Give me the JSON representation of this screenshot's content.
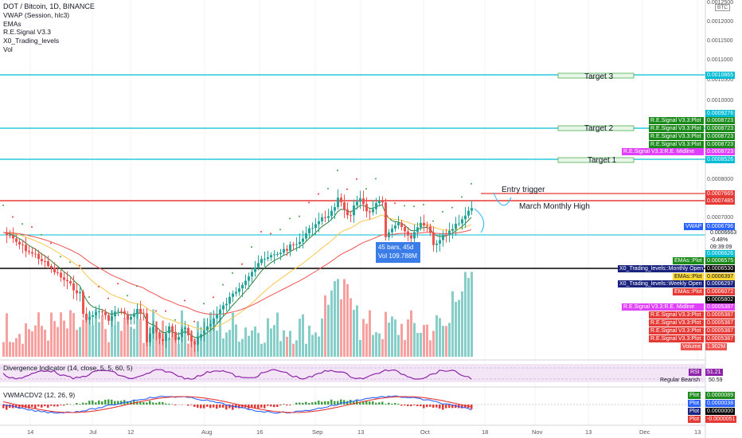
{
  "legend": {
    "title": "DOT / Bitcoin, 1D, BINANCE",
    "items": [
      "VWAP (Session, hlc3)",
      "EMAs",
      "R.E.Signal V3.3",
      "X0_Trading_levels",
      "Vol"
    ]
  },
  "currency": "BTC",
  "price_axis": [
    "0.0012500",
    "0.0012000",
    "0.0011500",
    "0.0011000",
    "0.0010500",
    "0.0010000",
    "0.0008000",
    "0.0007000"
  ],
  "time_axis": [
    "14",
    "Jul",
    "12",
    "Aug",
    "16",
    "Sep",
    "13",
    "Oct",
    "18",
    "Nov",
    "13",
    "Dec",
    "13"
  ],
  "targets": {
    "target3": "Target 3",
    "target2": "Target 2",
    "target1": "Target 1"
  },
  "annotations": {
    "entry": "Entry trigger",
    "march_high": "March Monthly High"
  },
  "bar_info": {
    "line1": "45 bars, 45d",
    "line2": "Vol 109.788M"
  },
  "right_tags": {
    "level_3": "0.0010865",
    "level_9276": "0.0009276",
    "re_plot_1": "R.E.Signal V3.3:Plot",
    "re_val_1": "0.0008723",
    "re_plot_2": "R.E.Signal V3.3:Plot",
    "re_val_2": "0.0008723",
    "re_plot_3": "R.E.Signal V3.3:Plot",
    "re_val_3": "0.0008723",
    "re_plot_4": "R.E.Signal V3.3:Plot",
    "re_val_4": "0.0008723",
    "re_midline_top": "R.E.Signal V3.3:R.E. Midline",
    "re_mid_val_top": "0.0008723",
    "level_8526": "0.0008526",
    "level_7665": "0.0007665",
    "level_7485": "0.0007485",
    "vwap_label": "VWAP",
    "vwap_val": "0.0006796",
    "price": "0.0006663",
    "change": "-0.48%",
    "countdown": "09:39:09",
    "level_6626": "0.0006626",
    "emas_plot_1": "EMAs::Plot",
    "emas_val_1": "0.0006575",
    "x0_monthly": "X0_Trading_levels::Monthly Open",
    "x0_monthly_val": "0.0006530",
    "emas_plot_2": "EMAs::Plot",
    "emas_val_2": "0.0006397",
    "x0_weekly": "X0_Trading_levels::Weekly Open",
    "x0_weekly_val": "0.0006297",
    "emas_plot_3": "EMAs::Plot",
    "emas_val_3": "0.0006072",
    "level_5802": "0.0005802",
    "re_midline_bottom": "R.E.Signal V3.3:R.E. Midline",
    "re_mid_val_bottom": "0.0005387",
    "re_plot_5": "R.E.Signal V3.3:Plot",
    "re_val_5": "0.0005387",
    "re_plot_6": "R.E.Signal V3.3:Plot",
    "re_val_6": "0.0005387",
    "re_plot_7": "R.E.Signal V3.3:Plot",
    "re_val_7": "0.0005387",
    "re_plot_8": "R.E.Signal V3.3:Plot",
    "re_val_8": "0.0005387",
    "volume_label": "Volume",
    "volume_val": "1.902M"
  },
  "divergence": {
    "label": "Divergence Indicator (14, close, 5, 5, 60, 5)",
    "rsi_label": "RSI",
    "rsi_val": "51.21",
    "regular_bearish": "Regular Bearish",
    "regular_bearish_val": "50.59"
  },
  "macd": {
    "label": "VWMACDV2 (12, 26, 9)",
    "plot_label": "Plot",
    "vals": [
      "0.0000089",
      "0.0000038",
      "0.0000000",
      "-0.0000051"
    ]
  },
  "colors": {
    "bull": "#26a69a",
    "bear": "#ef5350",
    "cyan": "#00bcd4",
    "red_line": "#e53935",
    "green_tag": "#1b8a1b",
    "red_tag": "#e53935",
    "magenta": "#e040fb",
    "blue_tag": "#2962ff",
    "navy_tag": "#1a237e"
  }
}
